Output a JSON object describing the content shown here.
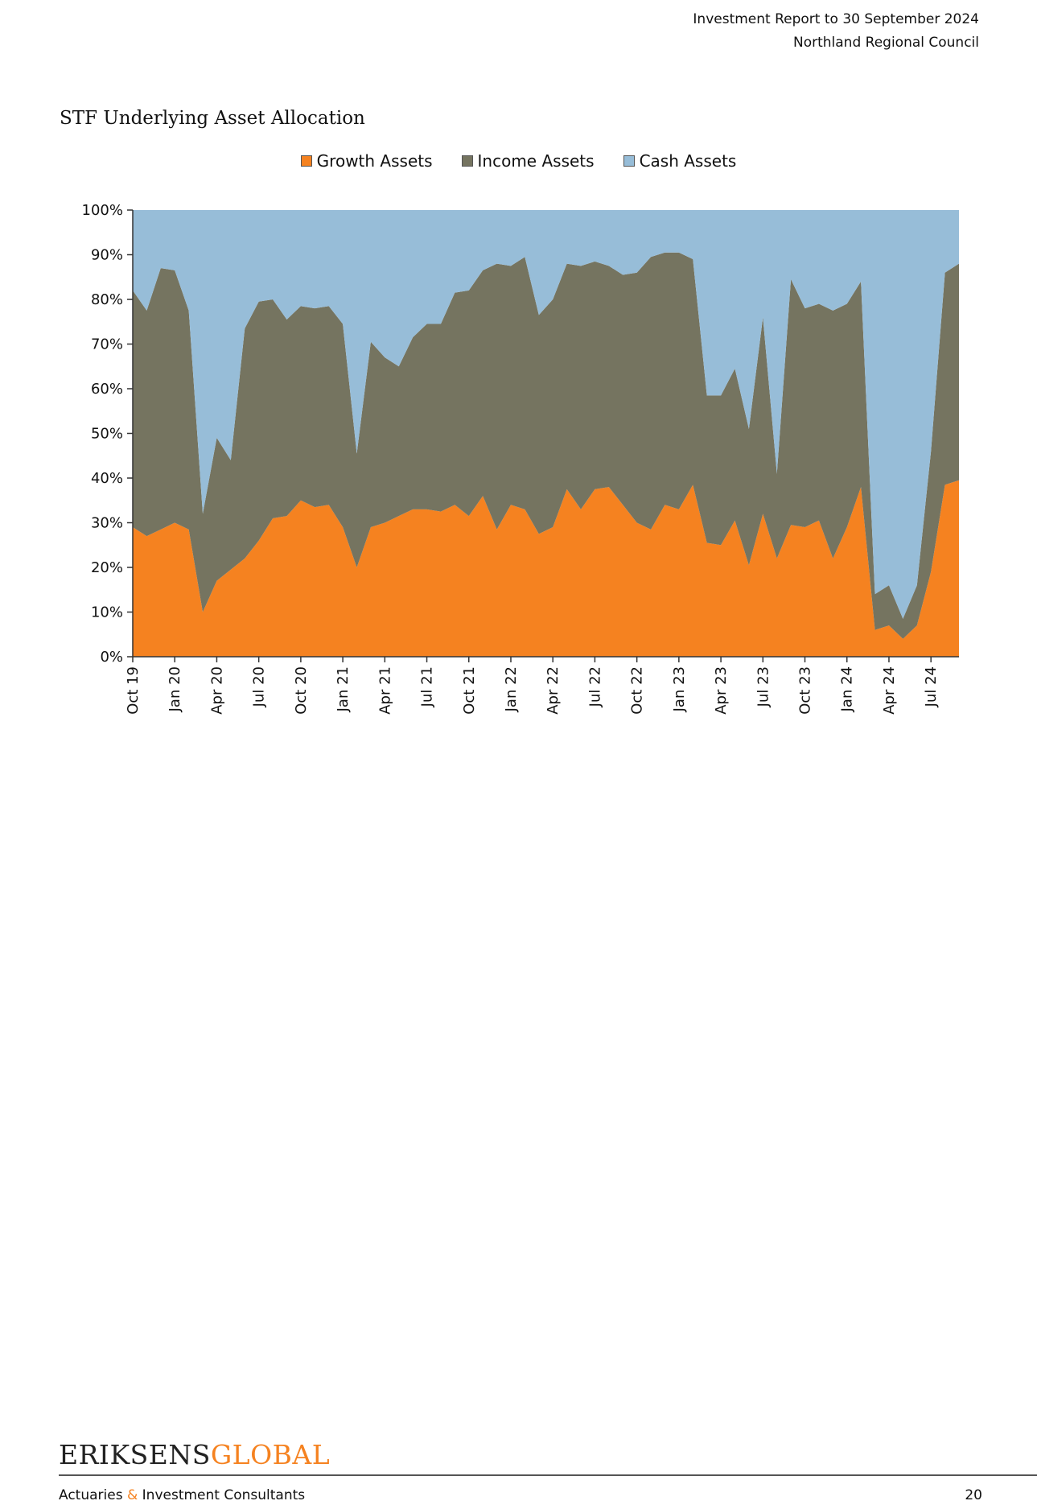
{
  "header": {
    "line1": "Investment Report to 30 September 2024",
    "line2": "Northland Regional Council"
  },
  "section_title": "STF Underlying Asset Allocation",
  "footer": {
    "logo_part1": "ERIKSENS",
    "logo_part2": "GLOBAL",
    "tagline_part1": "Actuaries",
    "tagline_amp": "&",
    "tagline_part2": "Investment Consultants",
    "page_number": "20"
  },
  "chart_data": {
    "type": "area",
    "stacked": true,
    "title": "",
    "xlabel": "",
    "ylabel": "",
    "ylim": [
      0,
      100
    ],
    "y_unit": "%",
    "y_ticks": [
      "0%",
      "10%",
      "20%",
      "30%",
      "40%",
      "50%",
      "60%",
      "70%",
      "80%",
      "90%",
      "100%"
    ],
    "x_tick_labels": [
      "Oct 19",
      "Jan 20",
      "Apr 20",
      "Jul 20",
      "Oct 20",
      "Jan 21",
      "Apr 21",
      "Jul 21",
      "Oct 21",
      "Jan 22",
      "Apr 22",
      "Jul 22",
      "Oct 22",
      "Jan 23",
      "Apr 23",
      "Jul 23",
      "Oct 23",
      "Jan 24",
      "Apr 24",
      "Jul 24"
    ],
    "x": [
      "Oct 19",
      "Nov 19",
      "Dec 19",
      "Jan 20",
      "Feb 20",
      "Mar 20",
      "Apr 20",
      "May 20",
      "Jun 20",
      "Jul 20",
      "Aug 20",
      "Sep 20",
      "Oct 20",
      "Nov 20",
      "Dec 20",
      "Jan 21",
      "Feb 21",
      "Mar 21",
      "Apr 21",
      "May 21",
      "Jun 21",
      "Jul 21",
      "Aug 21",
      "Sep 21",
      "Oct 21",
      "Nov 21",
      "Dec 21",
      "Jan 22",
      "Feb 22",
      "Mar 22",
      "Apr 22",
      "May 22",
      "Jun 22",
      "Jul 22",
      "Aug 22",
      "Sep 22",
      "Oct 22",
      "Nov 22",
      "Dec 22",
      "Jan 23",
      "Feb 23",
      "Mar 23",
      "Apr 23",
      "May 23",
      "Jun 23",
      "Jul 23",
      "Aug 23",
      "Sep 23",
      "Oct 23",
      "Nov 23",
      "Dec 23",
      "Jan 24",
      "Feb 24",
      "Mar 24",
      "Apr 24",
      "May 24",
      "Jun 24",
      "Jul 24",
      "Aug 24",
      "Sep 24"
    ],
    "legend_position": "top-center",
    "grid": false,
    "series": [
      {
        "name": "Growth Assets",
        "color": "#f58220",
        "values": [
          29,
          27,
          28.5,
          30,
          28.5,
          10,
          17,
          19.5,
          22,
          26,
          31,
          31.5,
          35,
          33.5,
          34,
          29,
          20,
          29,
          30,
          31.5,
          33,
          33,
          32.5,
          34,
          31.5,
          36,
          28.5,
          34,
          33,
          27.5,
          29,
          37.5,
          33,
          37.5,
          38,
          34,
          30,
          28.5,
          34,
          33,
          38.5,
          25.5,
          25,
          30.5,
          20.5,
          32,
          22,
          29.5,
          29,
          30.5,
          22,
          29,
          38,
          6,
          7,
          4,
          7,
          19,
          38.5,
          39.5
        ]
      },
      {
        "name": "Income Assets",
        "color": "#757460",
        "values": [
          53,
          50.5,
          58.5,
          56.5,
          49,
          22,
          32,
          24.5,
          51.5,
          53.5,
          49,
          44,
          43.5,
          44.5,
          44.5,
          45.5,
          25.5,
          41.5,
          37,
          33.5,
          38.5,
          41.5,
          42,
          47.5,
          50.5,
          50.5,
          59.5,
          53.5,
          56.5,
          49,
          51,
          50.5,
          54.5,
          51,
          49.5,
          51.5,
          56,
          61,
          56.5,
          57.5,
          50.5,
          33,
          33.5,
          34,
          30.5,
          44,
          19,
          55,
          49,
          48.5,
          55.5,
          50,
          46,
          8,
          9,
          4.5,
          9,
          27,
          47.5,
          48.5
        ]
      },
      {
        "name": "Cash Assets",
        "color": "#97bdd8",
        "values": [
          18,
          22.5,
          13,
          13.5,
          22.5,
          68,
          51,
          56,
          26.5,
          20.5,
          20,
          24.5,
          21.5,
          22,
          21.5,
          25.5,
          54.5,
          29.5,
          33,
          35,
          28.5,
          25.5,
          25.5,
          18.5,
          18,
          13.5,
          12,
          12.5,
          10.5,
          23.5,
          20,
          12,
          12.5,
          11.5,
          12.5,
          14.5,
          14,
          10.5,
          9.5,
          9.5,
          11,
          41.5,
          41.5,
          35.5,
          49,
          24,
          59,
          15.5,
          22,
          21,
          22.5,
          21,
          16,
          86,
          84,
          91.5,
          84,
          54,
          14,
          12
        ]
      }
    ]
  }
}
